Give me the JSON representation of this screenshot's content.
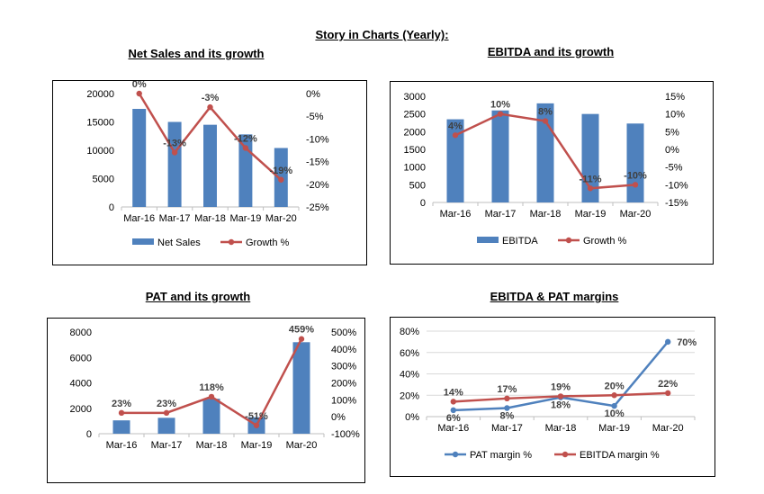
{
  "page_title": "Story in Charts (Yearly):",
  "colors": {
    "bar": "#4f81bd",
    "line_red": "#c0504d",
    "line_blue": "#4f81bd",
    "grid": "#d9d9d9",
    "axis": "#bfbfbf"
  },
  "chart_data": [
    {
      "id": "net-sales",
      "type": "bar",
      "title": "Net Sales and its growth",
      "categories": [
        "Mar-16",
        "Mar-17",
        "Mar-18",
        "Mar-19",
        "Mar-20"
      ],
      "series": [
        {
          "name": "Net Sales",
          "kind": "bar",
          "axis": "left",
          "values": [
            17300,
            15000,
            14500,
            12800,
            10400
          ]
        },
        {
          "name": "Growth %",
          "kind": "line",
          "axis": "right",
          "values": [
            0,
            -13,
            -3,
            -12,
            -19
          ],
          "labels": [
            "0%",
            "-13%",
            "-3%",
            "-12%",
            "-19%"
          ]
        }
      ],
      "ylim_left": [
        0,
        20000
      ],
      "yticks_left": [
        "0",
        "5000",
        "10000",
        "15000",
        "20000"
      ],
      "ylim_right": [
        -25,
        0
      ],
      "yticks_right": [
        "-25%",
        "-20%",
        "-15%",
        "-10%",
        "-5%",
        "0%"
      ],
      "grid": false,
      "legend": "bottom"
    },
    {
      "id": "ebitda",
      "type": "bar",
      "title": "EBITDA and its growth",
      "categories": [
        "Mar-16",
        "Mar-17",
        "Mar-18",
        "Mar-19",
        "Mar-20"
      ],
      "series": [
        {
          "name": "EBITDA",
          "kind": "bar",
          "axis": "left",
          "values": [
            2350,
            2600,
            2800,
            2500,
            2230
          ]
        },
        {
          "name": "Growth %",
          "kind": "line",
          "axis": "right",
          "values": [
            4,
            10,
            8,
            -11,
            -10
          ],
          "labels": [
            "4%",
            "10%",
            "8%",
            "-11%",
            "-10%"
          ]
        }
      ],
      "ylim_left": [
        0,
        3000
      ],
      "yticks_left": [
        "0",
        "500",
        "1000",
        "1500",
        "2000",
        "2500",
        "3000"
      ],
      "ylim_right": [
        -15,
        15
      ],
      "yticks_right": [
        "-15%",
        "-10%",
        "-5%",
        "0%",
        "5%",
        "10%",
        "15%"
      ],
      "grid": false,
      "legend": "bottom"
    },
    {
      "id": "pat",
      "type": "bar",
      "title": "PAT and its growth",
      "categories": [
        "Mar-16",
        "Mar-17",
        "Mar-18",
        "Mar-19",
        "Mar-20"
      ],
      "series": [
        {
          "name": "PAT",
          "kind": "bar",
          "axis": "left",
          "values": [
            1050,
            1250,
            2750,
            1300,
            7200
          ]
        },
        {
          "name": "Growth %",
          "kind": "line",
          "axis": "right",
          "values": [
            23,
            23,
            118,
            -51,
            459
          ],
          "labels": [
            "23%",
            "23%",
            "118%",
            "-51%",
            "459%"
          ]
        }
      ],
      "ylim_left": [
        0,
        8000
      ],
      "yticks_left": [
        "0",
        "2000",
        "4000",
        "6000",
        "8000"
      ],
      "ylim_right": [
        -100,
        500
      ],
      "yticks_right": [
        "-100%",
        "0%",
        "100%",
        "200%",
        "300%",
        "400%",
        "500%"
      ],
      "grid": false,
      "legend": "none"
    },
    {
      "id": "margins",
      "type": "line",
      "title": "EBITDA & PAT margins",
      "categories": [
        "Mar-16",
        "Mar-17",
        "Mar-18",
        "Mar-19",
        "Mar-20"
      ],
      "series": [
        {
          "name": "PAT margin %",
          "kind": "line",
          "axis": "left",
          "values": [
            6,
            8,
            18,
            10,
            70
          ],
          "labels": [
            "6%",
            "8%",
            "18%",
            "10%",
            "70%"
          ]
        },
        {
          "name": "EBITDA margin %",
          "kind": "line",
          "axis": "left",
          "values": [
            14,
            17,
            19,
            20,
            22
          ],
          "labels": [
            "14%",
            "17%",
            "19%",
            "20%",
            "22%"
          ]
        }
      ],
      "ylim_left": [
        0,
        80
      ],
      "yticks_left": [
        "0%",
        "20%",
        "40%",
        "60%",
        "80%"
      ],
      "grid": true,
      "legend": "bottom"
    }
  ]
}
